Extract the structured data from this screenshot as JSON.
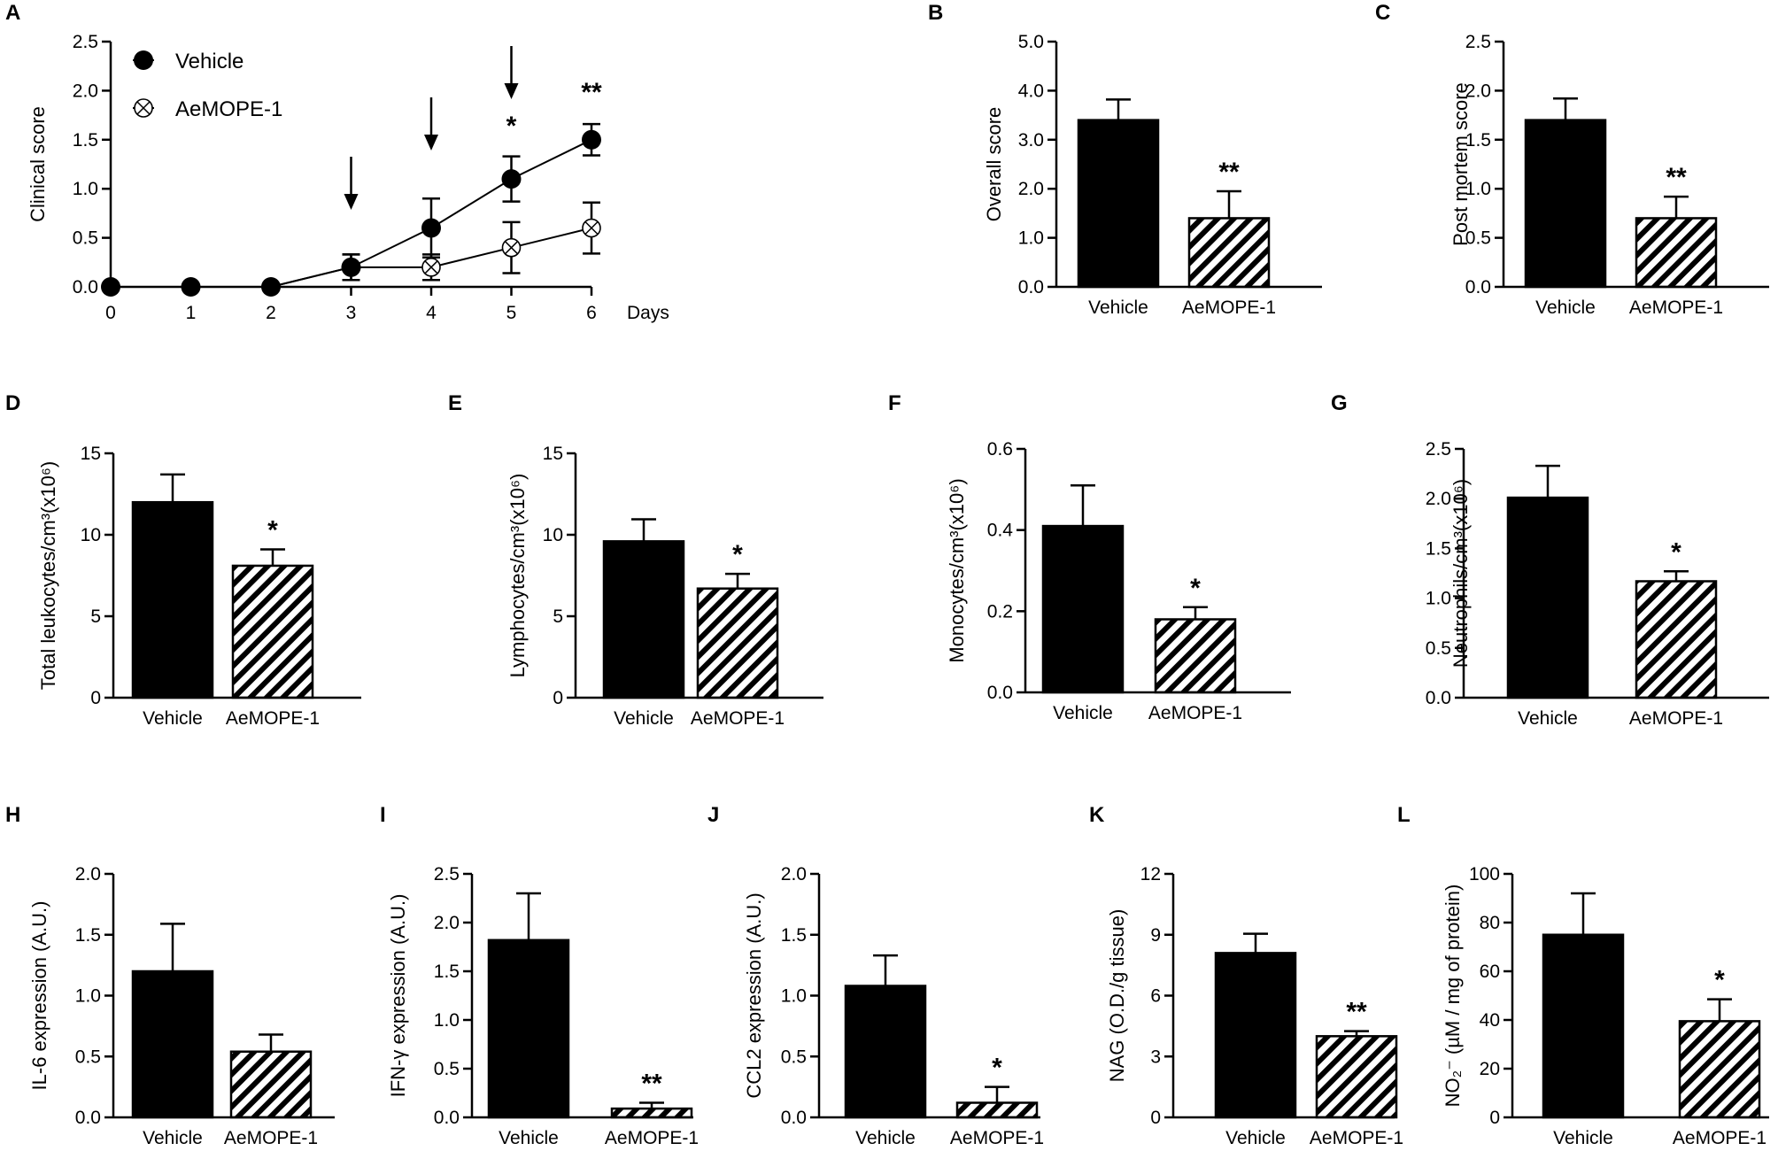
{
  "figure": {
    "colors": {
      "ink": "#000000",
      "background": "#ffffff"
    }
  },
  "chart_data": [
    {
      "id": "A",
      "panel_label": "A",
      "type": "line",
      "title": "",
      "xlabel": "Days",
      "ylabel": "Clinical score",
      "x": [
        0,
        1,
        2,
        3,
        4,
        5,
        6
      ],
      "xticks": [
        "0",
        "1",
        "2",
        "3",
        "4",
        "5",
        "6"
      ],
      "ylim": [
        0,
        2.5
      ],
      "yticks": [
        "0.0",
        "0.5",
        "1.0",
        "1.5",
        "2.0",
        "2.5"
      ],
      "series": [
        {
          "name": "Vehicle",
          "marker": "filled-circle",
          "values": [
            0,
            0,
            0,
            0.2,
            0.6,
            1.1,
            1.5
          ],
          "errors": [
            0,
            0,
            0,
            0.13,
            0.3,
            0.23,
            0.16
          ]
        },
        {
          "name": "AeMOPE-1",
          "marker": "open-circle-cross",
          "values": [
            0,
            0,
            0,
            0.2,
            0.2,
            0.4,
            0.6
          ],
          "errors": [
            0,
            0,
            0,
            0.13,
            0.13,
            0.26,
            0.26
          ]
        }
      ],
      "treatment_arrows_at_days": [
        3,
        4,
        5
      ],
      "significance": [
        {
          "x": 5,
          "label": "*"
        },
        {
          "x": 6,
          "label": "**"
        }
      ]
    },
    {
      "id": "B",
      "panel_label": "B",
      "type": "bar",
      "ylabel": "Overall score",
      "categories": [
        "Vehicle",
        "AeMOPE-1"
      ],
      "values": [
        3.4,
        1.4
      ],
      "errors": [
        0.42,
        0.55
      ],
      "ylim": [
        0,
        5.0
      ],
      "yticks": [
        "0.0",
        "1.0",
        "2.0",
        "3.0",
        "4.0",
        "5.0"
      ],
      "significance": [
        "",
        "**"
      ]
    },
    {
      "id": "C",
      "panel_label": "C",
      "type": "bar",
      "ylabel": "Post mortem score",
      "categories": [
        "Vehicle",
        "AeMOPE-1"
      ],
      "values": [
        1.7,
        0.7
      ],
      "errors": [
        0.22,
        0.22
      ],
      "ylim": [
        0,
        2.5
      ],
      "yticks": [
        "0.0",
        "0.5",
        "1.0",
        "1.5",
        "2.0",
        "2.5"
      ],
      "significance": [
        "",
        "**"
      ]
    },
    {
      "id": "D",
      "panel_label": "D",
      "type": "bar",
      "ylabel": "Total leukocytes/cm³(x10⁶)",
      "categories": [
        "Vehicle",
        "AeMOPE-1"
      ],
      "values": [
        12.0,
        8.1
      ],
      "errors": [
        1.7,
        1.0
      ],
      "ylim": [
        0,
        15
      ],
      "yticks": [
        "0",
        "5",
        "10",
        "15"
      ],
      "significance": [
        "",
        "*"
      ]
    },
    {
      "id": "E",
      "panel_label": "E",
      "type": "bar",
      "ylabel": "Lymphocytes/cm³(x10⁶)",
      "categories": [
        "Vehicle",
        "AeMOPE-1"
      ],
      "values": [
        9.6,
        6.7
      ],
      "errors": [
        1.35,
        0.9
      ],
      "ylim": [
        0,
        15
      ],
      "yticks": [
        "0",
        "5",
        "10",
        "15"
      ],
      "significance": [
        "",
        "*"
      ]
    },
    {
      "id": "F",
      "panel_label": "F",
      "type": "bar",
      "ylabel": "Monocytes/cm³(x10⁶)",
      "categories": [
        "Vehicle",
        "AeMOPE-1"
      ],
      "values": [
        0.41,
        0.18
      ],
      "errors": [
        0.1,
        0.03
      ],
      "ylim": [
        0,
        0.6
      ],
      "yticks": [
        "0.0",
        "0.2",
        "0.4",
        "0.6"
      ],
      "significance": [
        "",
        "*"
      ]
    },
    {
      "id": "G",
      "panel_label": "G",
      "type": "bar",
      "ylabel": "Neutrophils/cm³(x10⁶)",
      "categories": [
        "Vehicle",
        "AeMOPE-1"
      ],
      "values": [
        2.01,
        1.17
      ],
      "errors": [
        0.32,
        0.1
      ],
      "ylim": [
        0,
        2.5
      ],
      "yticks": [
        "0.0",
        "0.5",
        "1.0",
        "1.5",
        "2.0",
        "2.5"
      ],
      "significance": [
        "",
        "*"
      ]
    },
    {
      "id": "H",
      "panel_label": "H",
      "type": "bar",
      "ylabel": "IL-6 expression (A.U.)",
      "categories": [
        "Vehicle",
        "AeMOPE-1"
      ],
      "values": [
        1.2,
        0.54
      ],
      "errors": [
        0.39,
        0.14
      ],
      "ylim": [
        0,
        2.0
      ],
      "yticks": [
        "0.0",
        "0.5",
        "1.0",
        "1.5",
        "2.0"
      ],
      "significance": [
        "",
        ""
      ]
    },
    {
      "id": "I",
      "panel_label": "I",
      "type": "bar",
      "ylabel": "IFN-γ expression (A.U.)",
      "categories": [
        "Vehicle",
        "AeMOPE-1"
      ],
      "values": [
        1.82,
        0.09
      ],
      "errors": [
        0.48,
        0.06
      ],
      "ylim": [
        0,
        2.5
      ],
      "yticks": [
        "0.0",
        "0.5",
        "1.0",
        "1.5",
        "2.0",
        "2.5"
      ],
      "significance": [
        "",
        "**"
      ]
    },
    {
      "id": "J",
      "panel_label": "J",
      "type": "bar",
      "ylabel": "CCL2 expression (A.U.)",
      "categories": [
        "Vehicle",
        "AeMOPE-1"
      ],
      "values": [
        1.08,
        0.12
      ],
      "errors": [
        0.25,
        0.13
      ],
      "ylim": [
        0,
        2.0
      ],
      "yticks": [
        "0.0",
        "0.5",
        "1.0",
        "1.5",
        "2.0"
      ],
      "significance": [
        "",
        "*"
      ]
    },
    {
      "id": "K",
      "panel_label": "K",
      "type": "bar",
      "ylabel": "NAG (O.D./g tissue)",
      "categories": [
        "Vehicle",
        "AeMOPE-1"
      ],
      "values": [
        8.1,
        4.0
      ],
      "errors": [
        0.95,
        0.25
      ],
      "ylim": [
        0,
        12
      ],
      "yticks": [
        "0",
        "3",
        "6",
        "9",
        "12"
      ],
      "significance": [
        "",
        "**"
      ]
    },
    {
      "id": "L",
      "panel_label": "L",
      "type": "bar",
      "ylabel": "NO₂⁻ (µM / mg of protein)",
      "categories": [
        "Vehicle",
        "AeMOPE-1"
      ],
      "values": [
        75,
        39.5
      ],
      "errors": [
        17,
        9
      ],
      "ylim": [
        0,
        100
      ],
      "yticks": [
        "0",
        "20",
        "40",
        "60",
        "80",
        "100"
      ],
      "significance": [
        "",
        "*"
      ]
    }
  ]
}
